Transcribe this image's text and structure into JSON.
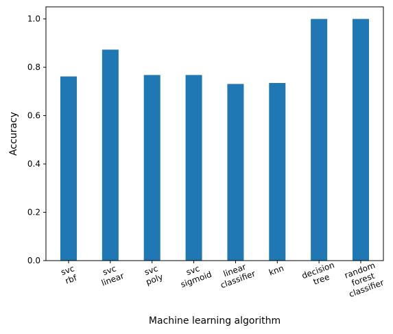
{
  "chart_data": {
    "type": "bar",
    "title": "",
    "xlabel": "Machine learning algorithm",
    "ylabel": "Accuracy",
    "ylim": [
      0,
      1.05
    ],
    "yticks": [
      "0.0",
      "0.2",
      "0.4",
      "0.6",
      "0.8",
      "1.0"
    ],
    "categories": [
      [
        "svc",
        "rbf"
      ],
      [
        "svc",
        "linear"
      ],
      [
        "svc",
        "poly"
      ],
      [
        "svc",
        "sigmoid"
      ],
      [
        "linear",
        "classifier"
      ],
      [
        "knn"
      ],
      [
        "decision",
        "tree"
      ],
      [
        "random",
        "forest",
        "classifier"
      ]
    ],
    "values": [
      0.762,
      0.873,
      0.768,
      0.768,
      0.731,
      0.735,
      1.0,
      1.0
    ],
    "bar_color": "#1f77b4",
    "grid": false,
    "legend": "none",
    "tick_rotation_deg": -20
  }
}
